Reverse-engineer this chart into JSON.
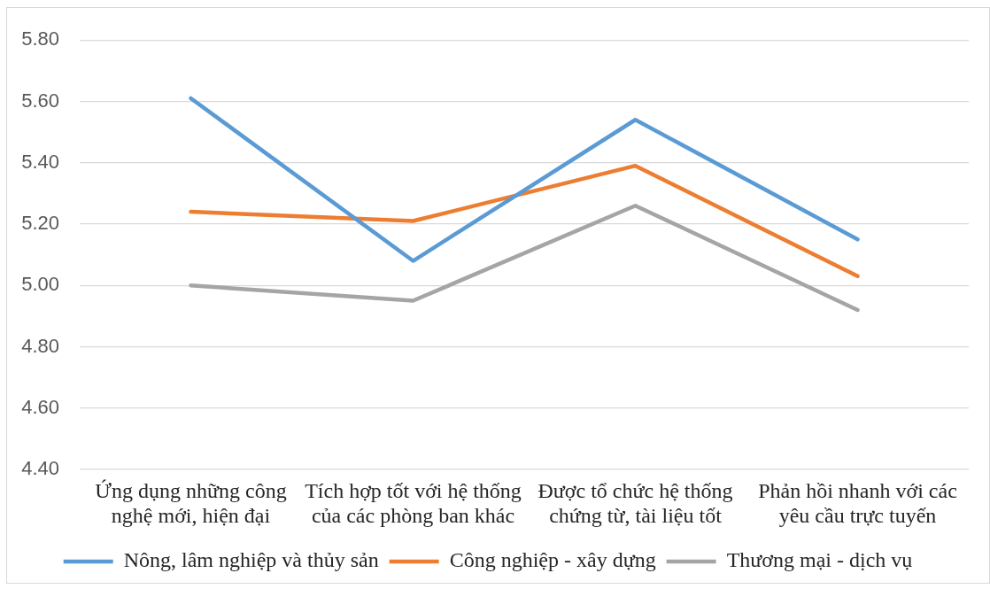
{
  "chart_data": {
    "type": "line",
    "categories": [
      "Ứng dụng những công nghệ mới, hiện đại",
      "Tích hợp tốt với hệ thống của các phòng ban khác",
      "Được tổ chức hệ thống chứng từ, tài liệu tốt",
      "Phản hồi nhanh với các yêu cầu trực tuyến"
    ],
    "series": [
      {
        "name": "Nông, lâm nghiệp và thủy sản",
        "color": "#5b9bd5",
        "values": [
          5.61,
          5.08,
          5.54,
          5.15
        ]
      },
      {
        "name": "Công nghiệp - xây dựng",
        "color": "#ed7d31",
        "values": [
          5.24,
          5.21,
          5.39,
          5.03
        ]
      },
      {
        "name": "Thương mại - dịch vụ",
        "color": "#a5a5a5",
        "values": [
          5.0,
          4.95,
          5.26,
          4.92
        ]
      }
    ],
    "ylim": [
      4.4,
      5.8
    ],
    "yticks": [
      {
        "value": 4.4,
        "label": "4.40"
      },
      {
        "value": 4.6,
        "label": "4.60"
      },
      {
        "value": 4.8,
        "label": "4.80"
      },
      {
        "value": 5.0,
        "label": "5.00"
      },
      {
        "value": 5.2,
        "label": "5.20"
      },
      {
        "value": 5.4,
        "label": "5.40"
      },
      {
        "value": 5.6,
        "label": "5.60"
      },
      {
        "value": 5.8,
        "label": "5.80"
      }
    ],
    "grid": "y",
    "legend": "bottom",
    "marker": "none"
  }
}
